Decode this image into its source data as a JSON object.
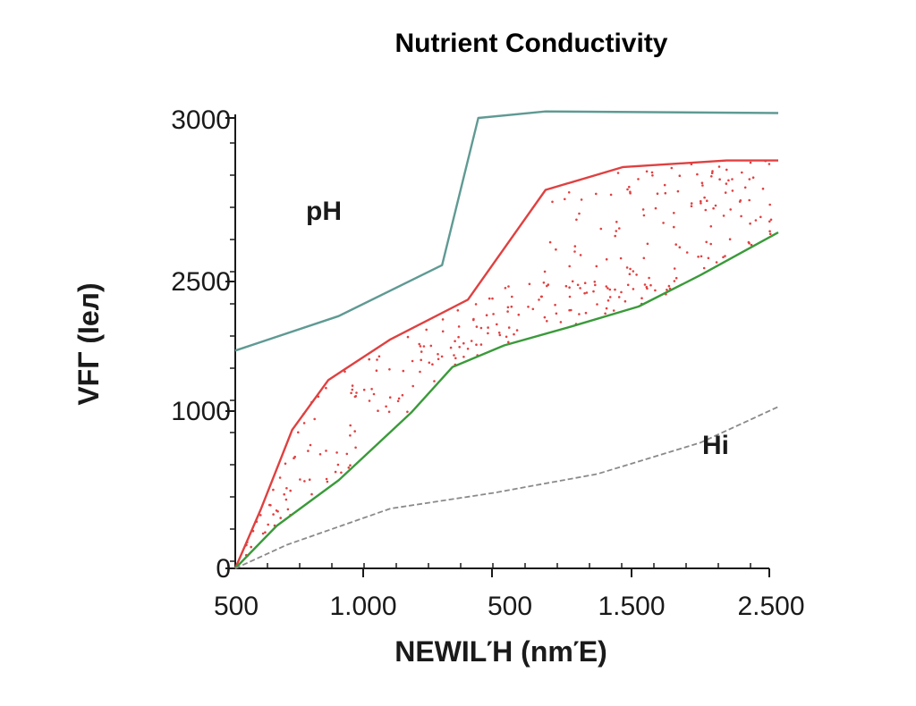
{
  "chart_data": {
    "type": "line",
    "title": "Nutrient Conductivity",
    "xlabel": "ΝEWΙLΉ (nmΈ)",
    "ylabel": "VFΓ (Ieл)",
    "x_ticks": [
      "500",
      "1.000",
      "500",
      "1.500",
      "2.500"
    ],
    "y_ticks": [
      "0",
      "1000",
      "2500",
      "3000"
    ],
    "grid": false,
    "annotations": [
      {
        "text": "pH"
      },
      {
        "text": "Hi"
      }
    ],
    "series": [
      {
        "key": "teal",
        "color": "#5f9a93",
        "style": "solid",
        "points": [
          [
            0,
            1700
          ],
          [
            2,
            2100
          ],
          [
            4,
            2550
          ],
          [
            4.7,
            3000
          ],
          [
            6,
            3020
          ],
          [
            10.5,
            3015
          ]
        ]
      },
      {
        "key": "red",
        "color": "#e04040",
        "style": "solid",
        "points": [
          [
            0,
            0
          ],
          [
            0.5,
            380
          ],
          [
            1.1,
            880
          ],
          [
            1.8,
            1360
          ],
          [
            3,
            1830
          ],
          [
            4.5,
            2290
          ],
          [
            6,
            2780
          ],
          [
            7.5,
            2850
          ],
          [
            9.5,
            2870
          ],
          [
            10.5,
            2870
          ]
        ]
      },
      {
        "key": "green",
        "color": "#3a9a3a",
        "style": "solid",
        "points": [
          [
            0,
            0
          ],
          [
            0.8,
            270
          ],
          [
            2,
            560
          ],
          [
            3.4,
            990
          ],
          [
            4.2,
            1510
          ],
          [
            5.2,
            1760
          ],
          [
            6.5,
            1980
          ],
          [
            7.8,
            2210
          ],
          [
            9,
            2520
          ],
          [
            10.5,
            2650
          ]
        ]
      },
      {
        "key": "gray",
        "color": "#8a8a8a",
        "style": "dashed",
        "points": [
          [
            0,
            0
          ],
          [
            1,
            150
          ],
          [
            3,
            380
          ],
          [
            5,
            480
          ],
          [
            7,
            600
          ],
          [
            9,
            800
          ],
          [
            10.5,
            1050
          ]
        ]
      }
    ],
    "scatter": {
      "color": "#e04040"
    }
  }
}
